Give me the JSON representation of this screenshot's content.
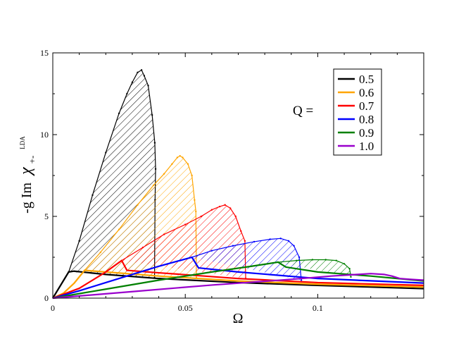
{
  "chart_data": {
    "type": "line",
    "xlabel": "Ω",
    "ylabel_parts": {
      "main": "-g Im",
      "chi": "χ",
      "sub": "+-",
      "sup": "LDA"
    },
    "xlim": [
      0,
      0.14
    ],
    "ylim": [
      0,
      15
    ],
    "xticks": [
      0,
      0.05,
      0.1
    ],
    "xtick_labels": [
      "0",
      "0.05",
      "0.1"
    ],
    "yticks": [
      0,
      5,
      10,
      15
    ],
    "ytick_labels": [
      "0",
      "5",
      "10",
      "15"
    ],
    "grid": false,
    "legend_prefix": "Q =",
    "legend_position": "top-right",
    "series": [
      {
        "name": "0.5",
        "color": "#000000",
        "smooth": [
          [
            0,
            0
          ],
          [
            0.006,
            1.6
          ],
          [
            0.008,
            1.65
          ],
          [
            0.02,
            1.45
          ],
          [
            0.04,
            1.2
          ],
          [
            0.07,
            0.95
          ],
          [
            0.1,
            0.78
          ],
          [
            0.14,
            0.58
          ]
        ],
        "hatched": [
          [
            0.006,
            1.6
          ],
          [
            0.01,
            3.5
          ],
          [
            0.015,
            6.3
          ],
          [
            0.02,
            8.9
          ],
          [
            0.025,
            11.3
          ],
          [
            0.028,
            12.5
          ],
          [
            0.03,
            13.2
          ],
          [
            0.032,
            13.8
          ],
          [
            0.0335,
            13.95
          ],
          [
            0.0345,
            13.6
          ],
          [
            0.036,
            13.0
          ],
          [
            0.0375,
            11.2
          ],
          [
            0.0385,
            9.5
          ],
          [
            0.0388,
            7.9
          ],
          [
            0.0386,
            6.0
          ],
          [
            0.0384,
            1.25
          ]
        ]
      },
      {
        "name": "0.6",
        "color": "#ffa500",
        "smooth": [
          [
            0,
            0
          ],
          [
            0.004,
            0.3
          ],
          [
            0.008,
            0.9
          ],
          [
            0.012,
            1.7
          ],
          [
            0.02,
            1.6
          ],
          [
            0.04,
            1.35
          ],
          [
            0.07,
            1.05
          ],
          [
            0.1,
            0.85
          ],
          [
            0.14,
            0.68
          ]
        ],
        "hatched": [
          [
            0.012,
            1.7
          ],
          [
            0.018,
            2.8
          ],
          [
            0.025,
            4.2
          ],
          [
            0.032,
            5.7
          ],
          [
            0.038,
            6.9
          ],
          [
            0.042,
            7.6
          ],
          [
            0.045,
            8.2
          ],
          [
            0.047,
            8.6
          ],
          [
            0.048,
            8.7
          ],
          [
            0.049,
            8.6
          ],
          [
            0.051,
            8.2
          ],
          [
            0.0525,
            7.5
          ],
          [
            0.0535,
            6.0
          ],
          [
            0.054,
            5.3
          ],
          [
            0.0542,
            1.25
          ]
        ]
      },
      {
        "name": "0.7",
        "color": "#ff0000",
        "smooth": [
          [
            0,
            0
          ],
          [
            0.01,
            0.6
          ],
          [
            0.02,
            1.6
          ],
          [
            0.026,
            2.3
          ],
          [
            0.028,
            1.7
          ],
          [
            0.04,
            1.55
          ],
          [
            0.07,
            1.2
          ],
          [
            0.1,
            0.95
          ],
          [
            0.14,
            0.78
          ]
        ],
        "hatched": [
          [
            0.026,
            2.3
          ],
          [
            0.034,
            3.1
          ],
          [
            0.042,
            3.9
          ],
          [
            0.05,
            4.5
          ],
          [
            0.056,
            5.0
          ],
          [
            0.06,
            5.4
          ],
          [
            0.063,
            5.6
          ],
          [
            0.065,
            5.7
          ],
          [
            0.067,
            5.5
          ],
          [
            0.069,
            5.0
          ],
          [
            0.071,
            4.1
          ],
          [
            0.0725,
            3.5
          ],
          [
            0.0728,
            1.2
          ]
        ]
      },
      {
        "name": "0.8",
        "color": "#0000ff",
        "smooth": [
          [
            0,
            0
          ],
          [
            0.01,
            0.45
          ],
          [
            0.02,
            0.95
          ],
          [
            0.03,
            1.45
          ],
          [
            0.04,
            1.95
          ],
          [
            0.0525,
            2.5
          ],
          [
            0.055,
            1.85
          ],
          [
            0.07,
            1.6
          ],
          [
            0.1,
            1.2
          ],
          [
            0.14,
            0.92
          ]
        ],
        "hatched": [
          [
            0.0525,
            2.5
          ],
          [
            0.06,
            2.9
          ],
          [
            0.068,
            3.2
          ],
          [
            0.076,
            3.45
          ],
          [
            0.082,
            3.6
          ],
          [
            0.086,
            3.65
          ],
          [
            0.089,
            3.5
          ],
          [
            0.091,
            3.2
          ],
          [
            0.093,
            2.5
          ],
          [
            0.0938,
            1.1
          ]
        ]
      },
      {
        "name": "0.9",
        "color": "#008000",
        "smooth": [
          [
            0,
            0
          ],
          [
            0.02,
            0.55
          ],
          [
            0.04,
            1.1
          ],
          [
            0.06,
            1.6
          ],
          [
            0.075,
            1.95
          ],
          [
            0.085,
            2.2
          ],
          [
            0.088,
            1.9
          ],
          [
            0.1,
            1.6
          ],
          [
            0.12,
            1.35
          ],
          [
            0.14,
            1.05
          ]
        ],
        "hatched": [
          [
            0.085,
            2.2
          ],
          [
            0.092,
            2.3
          ],
          [
            0.098,
            2.35
          ],
          [
            0.103,
            2.35
          ],
          [
            0.107,
            2.3
          ],
          [
            0.11,
            2.1
          ],
          [
            0.112,
            1.8
          ],
          [
            0.1125,
            1.3
          ]
        ]
      },
      {
        "name": "1.0",
        "color": "#9900cc",
        "smooth": [
          [
            0,
            0
          ],
          [
            0.03,
            0.4
          ],
          [
            0.06,
            0.8
          ],
          [
            0.09,
            1.15
          ],
          [
            0.105,
            1.35
          ],
          [
            0.115,
            1.45
          ],
          [
            0.12,
            1.5
          ],
          [
            0.125,
            1.45
          ],
          [
            0.128,
            1.35
          ],
          [
            0.131,
            1.2
          ],
          [
            0.135,
            1.15
          ],
          [
            0.14,
            1.1
          ]
        ],
        "hatched": []
      }
    ]
  }
}
